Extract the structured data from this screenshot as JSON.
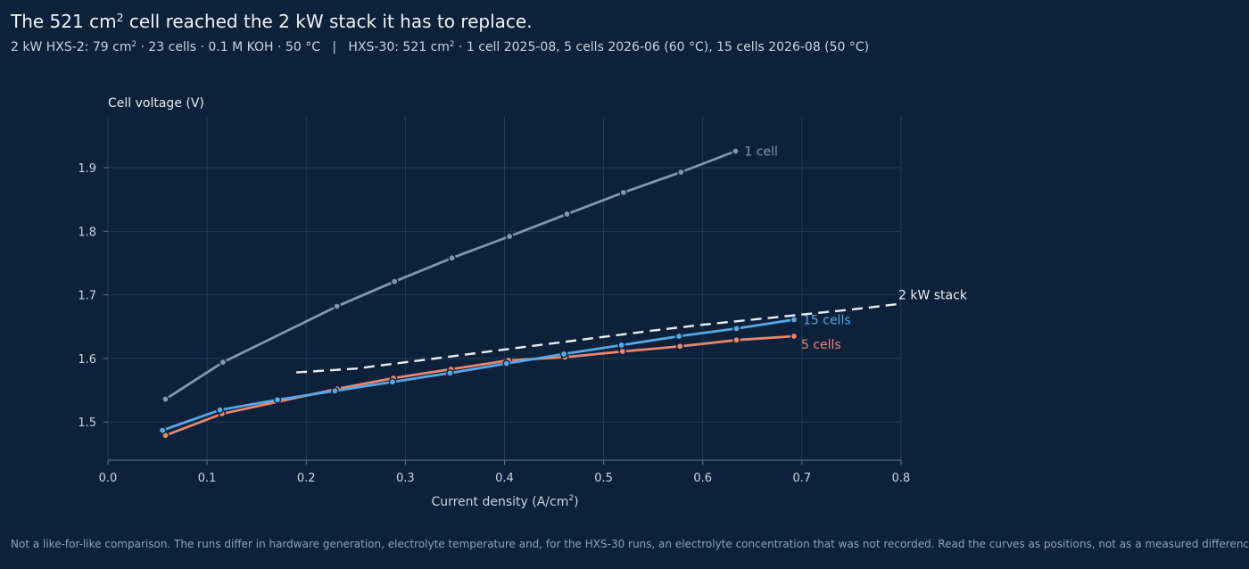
{
  "title": {
    "before": "The 521 cm",
    "sup": "2",
    "after": " cell reached the 2 kW stack it has to replace."
  },
  "subtitle": {
    "p1": "2 kW HXS-2: 79 cm",
    "s1": "2",
    "p2": " · 23 cells · 0.1 M KOH · 50 °C   |   HXS-30: 521 cm",
    "s2": "2",
    "p3": " · 1 cell 2025-08, 5 cells 2026-06 (60 °C), 15 cells 2026-08 (50 °C)"
  },
  "footnote": "Not a like-for-like comparison. The runs differ in hardware generation, electrolyte temperature and, for the HXS-30 runs, an electrolyte concentration that was not recorded. Read the curves as positions, not as a measured difference.",
  "colors": {
    "background": "#0d213b",
    "grid": "#1f3d58",
    "one_cell": "#8196ad",
    "five_cells": "#e8876d",
    "fifteen_cells": "#5aa6e6",
    "stack": "#e9eef5"
  },
  "chart_data": {
    "type": "line",
    "xlabel_before": "Current density (A/cm",
    "xlabel_sup": "2",
    "xlabel_after": ")",
    "ylabel": "Cell voltage (V)",
    "xlim": [
      0.0,
      0.8
    ],
    "ylim": [
      1.44,
      1.98
    ],
    "xticks": [
      0.0,
      0.1,
      0.2,
      0.3,
      0.4,
      0.5,
      0.6,
      0.7,
      0.8
    ],
    "xtick_labels": [
      "0.0",
      "0.1",
      "0.2",
      "0.3",
      "0.4",
      "0.5",
      "0.6",
      "0.7",
      "0.8"
    ],
    "yticks": [
      1.5,
      1.6,
      1.7,
      1.8,
      1.9
    ],
    "ytick_labels": [
      "1.5",
      "1.6",
      "1.7",
      "1.8",
      "1.9"
    ],
    "grid": true,
    "series": [
      {
        "name": "1 cell",
        "key": "one_cell",
        "markers": true,
        "x": [
          0.058,
          0.116,
          0.231,
          0.289,
          0.347,
          0.405,
          0.463,
          0.52,
          0.578,
          0.633
        ],
        "y": [
          1.536,
          1.594,
          1.682,
          1.721,
          1.758,
          1.792,
          1.827,
          1.861,
          1.893,
          1.926
        ]
      },
      {
        "name": "5 cells",
        "key": "five_cells",
        "markers": true,
        "x": [
          0.058,
          0.115,
          0.231,
          0.288,
          0.346,
          0.404,
          0.461,
          0.519,
          0.577,
          0.634,
          0.692
        ],
        "y": [
          1.479,
          1.513,
          1.552,
          1.569,
          1.583,
          1.597,
          1.602,
          1.611,
          1.619,
          1.629,
          1.635
        ]
      },
      {
        "name": "15 cells",
        "key": "fifteen_cells",
        "markers": true,
        "x": [
          0.055,
          0.113,
          0.171,
          0.229,
          0.287,
          0.345,
          0.402,
          0.46,
          0.518,
          0.576,
          0.634,
          0.692
        ],
        "y": [
          1.487,
          1.519,
          1.535,
          1.549,
          1.563,
          1.577,
          1.592,
          1.607,
          1.621,
          1.635,
          1.647,
          1.661
        ]
      },
      {
        "name": "2 kW stack",
        "key": "stack",
        "markers": false,
        "dashed": true,
        "x": [
          0.19,
          0.25,
          0.3,
          0.35,
          0.4,
          0.45,
          0.5,
          0.55,
          0.6,
          0.65,
          0.7,
          0.75,
          0.8
        ],
        "y": [
          1.578,
          1.584,
          1.594,
          1.604,
          1.614,
          1.624,
          1.634,
          1.644,
          1.653,
          1.661,
          1.669,
          1.677,
          1.686
        ]
      }
    ]
  }
}
